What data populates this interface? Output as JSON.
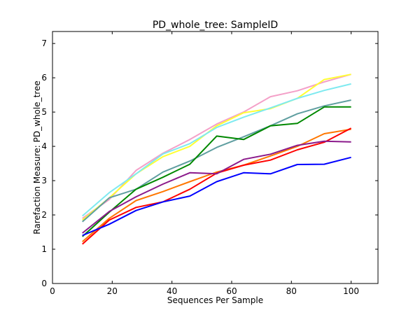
{
  "chart_data": {
    "type": "line",
    "title": "PD_whole_tree: SampleID",
    "xlabel": "Sequences Per Sample",
    "ylabel": "Rarefaction Measure: PD_whole_tree",
    "xlim": [
      0,
      109
    ],
    "ylim": [
      0,
      7.35
    ],
    "xticks": [
      0,
      20,
      40,
      60,
      80,
      100
    ],
    "yticks": [
      0,
      1,
      2,
      3,
      4,
      5,
      6,
      7
    ],
    "grid": false,
    "legend": "none",
    "x": [
      10,
      19,
      28,
      37,
      46,
      55,
      64,
      73,
      82,
      91,
      100
    ],
    "series": [
      {
        "color": "#f4a0c8",
        "values": [
          1.9,
          2.45,
          3.3,
          3.8,
          4.2,
          4.65,
          5.0,
          5.45,
          5.62,
          5.88,
          6.1
        ]
      },
      {
        "color": "#ffff33",
        "values": [
          1.85,
          2.5,
          3.2,
          3.7,
          4.0,
          4.6,
          4.98,
          5.1,
          5.4,
          5.95,
          6.1
        ]
      },
      {
        "color": "#7eeaf0",
        "values": [
          1.97,
          2.65,
          3.2,
          3.78,
          4.08,
          4.55,
          4.85,
          5.12,
          5.4,
          5.63,
          5.82
        ]
      },
      {
        "color": "#5f9ea0",
        "values": [
          1.8,
          2.5,
          2.75,
          3.25,
          3.57,
          3.97,
          4.28,
          4.6,
          4.95,
          5.18,
          5.35
        ]
      },
      {
        "color": "#008800",
        "values": [
          1.37,
          2.08,
          2.75,
          3.1,
          3.48,
          4.3,
          4.2,
          4.6,
          4.67,
          5.15,
          5.15
        ]
      },
      {
        "color": "#ff7700",
        "values": [
          1.22,
          1.9,
          2.42,
          2.68,
          2.97,
          3.25,
          3.45,
          3.72,
          4.0,
          4.37,
          4.5
        ]
      },
      {
        "color": "#ff0000",
        "values": [
          1.15,
          1.85,
          2.22,
          2.38,
          2.75,
          3.22,
          3.45,
          3.6,
          3.9,
          4.12,
          4.53
        ]
      },
      {
        "color": "#8b1a8b",
        "values": [
          1.47,
          2.1,
          2.53,
          2.9,
          3.23,
          3.2,
          3.62,
          3.77,
          4.03,
          4.15,
          4.13
        ]
      },
      {
        "color": "#0000ff",
        "values": [
          1.4,
          1.73,
          2.13,
          2.38,
          2.55,
          2.97,
          3.23,
          3.2,
          3.47,
          3.48,
          3.68
        ]
      }
    ]
  }
}
